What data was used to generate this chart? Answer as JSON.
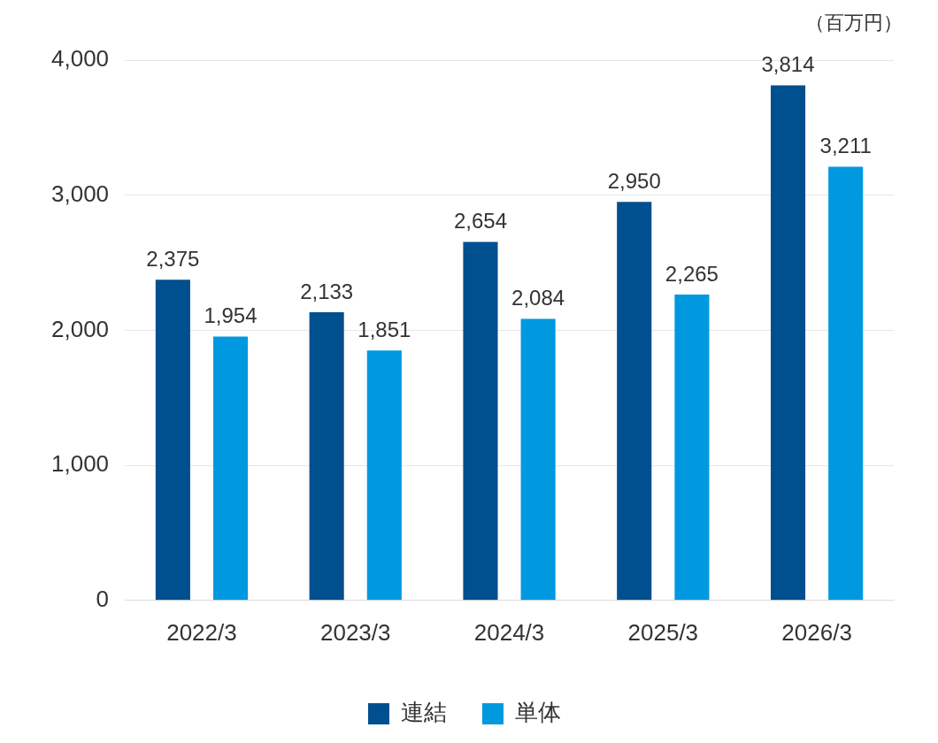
{
  "chart_data": {
    "type": "bar",
    "categories": [
      "2022/3",
      "2023/3",
      "2024/3",
      "2025/3",
      "2026/3"
    ],
    "series": [
      {
        "name": "連結",
        "color": "#004f8f",
        "values": [
          2375,
          2133,
          2654,
          2950,
          3814
        ],
        "value_labels": [
          "2,375",
          "2,133",
          "2,654",
          "2,950",
          "3,814"
        ]
      },
      {
        "name": "単体",
        "color": "#0099e0",
        "values": [
          1954,
          1851,
          2084,
          2265,
          3211
        ],
        "value_labels": [
          "1,954",
          "1,851",
          "2,084",
          "2,265",
          "3,211"
        ]
      }
    ],
    "ylim": [
      0,
      4000
    ],
    "yticks": [
      0,
      {
        "value": 1000,
        "label": "1,000"
      },
      {
        "value": 2000,
        "label": "2,000"
      },
      {
        "value": 3000,
        "label": "3,000"
      },
      {
        "value": 4000,
        "label": "4,000"
      }
    ],
    "grid": "y",
    "legend": "bottom",
    "annotations": [
      "（百万円）"
    ]
  }
}
